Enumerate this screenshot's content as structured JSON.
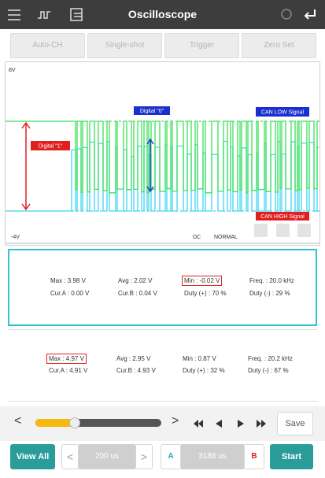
{
  "toolbar": {
    "title": "Oscilloscope"
  },
  "buttons": [
    "Auto-CH",
    "Single-shot",
    "Trigger",
    "Zero Set"
  ],
  "scope": {
    "top_label": "8V",
    "bottom_label": "-4V",
    "coupling": "DC",
    "mode": "NORMAL",
    "annotations": {
      "digital_1": "Digital \"1\"",
      "digital_0": "Digital \"0\"",
      "can_low": "CAN LOW Signal",
      "can_high": "CAN HIGH Signal"
    }
  },
  "panels": [
    {
      "rows": [
        [
          "Max : 3.98 V",
          "Avg : 2.02 V",
          "Min : -0.02 V",
          "Freq. : 20.0 kHz"
        ],
        [
          "Cur.A : 0.00 V",
          "Cur.B : 0.04 V",
          "Duty (+) : 70 %",
          "Duty (-) : 29 %"
        ]
      ]
    },
    {
      "rows": [
        [
          "Max : 4.97 V",
          "Avg : 2.95 V",
          "Min : 0.87 V",
          "Freq. : 20.2 kHz"
        ],
        [
          "Cur.A : 4.91 V",
          "Cur.B : 4.93 V",
          "Duty (+) : 32 %",
          "Duty (-) : 67 %"
        ]
      ]
    }
  ],
  "controls": {
    "prev": "<",
    "next": ">",
    "save": "Save"
  },
  "footer": {
    "view_all": "View All",
    "prev": "<",
    "time_div": "200 us",
    "next": ">",
    "a": "A",
    "cursor": "3188 us",
    "b": "B",
    "start": "Start"
  }
}
